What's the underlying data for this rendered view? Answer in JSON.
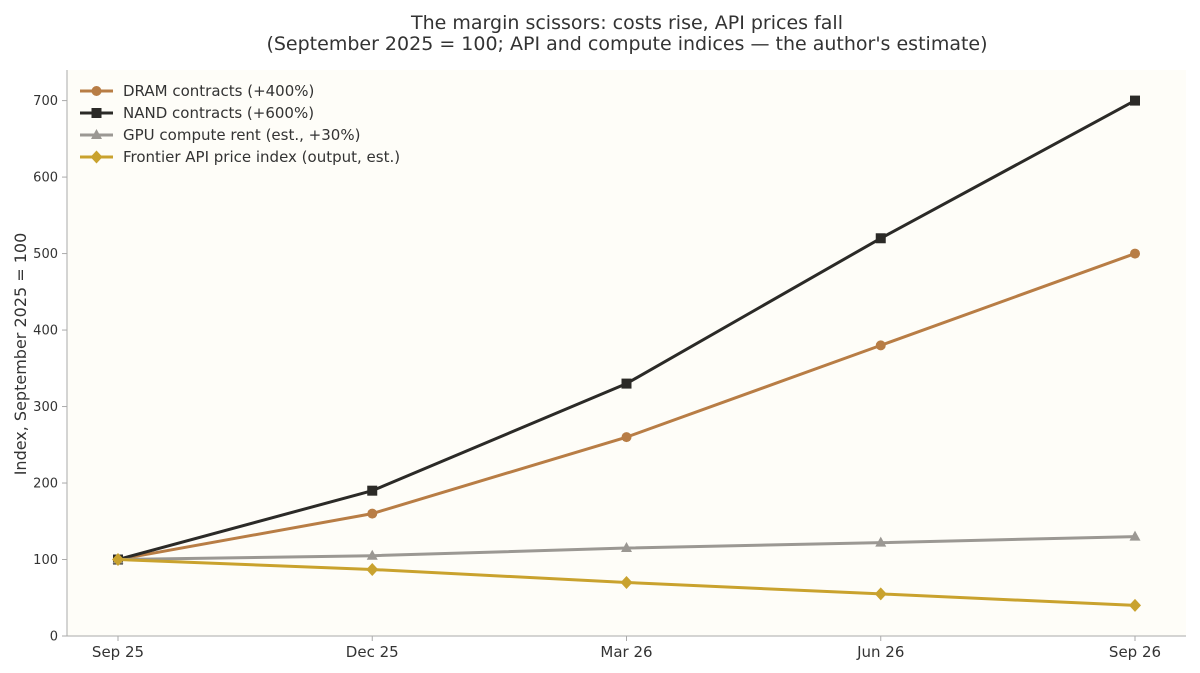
{
  "chart_data": {
    "type": "line",
    "title": "The margin scissors: costs rise, API prices fall",
    "subtitle": "(September 2025 = 100; API and compute indices — the author's estimate)",
    "xlabel": "",
    "ylabel": "Index, September 2025 = 100",
    "categories": [
      "Sep 25",
      "Dec 25",
      "Mar 26",
      "Jun 26",
      "Sep 26"
    ],
    "ylim": [
      0,
      740
    ],
    "yticks": [
      0,
      100,
      200,
      300,
      400,
      500,
      600,
      700
    ],
    "grid": false,
    "legend_position": "top-left",
    "plot_background": "#fefdf8",
    "series": [
      {
        "name": "DRAM contracts (+400%)",
        "values": [
          100,
          160,
          260,
          380,
          500
        ],
        "color": "#b87d45",
        "marker": "circle"
      },
      {
        "name": "NAND contracts (+600%)",
        "values": [
          100,
          190,
          330,
          520,
          700
        ],
        "color": "#2b2a27",
        "marker": "square"
      },
      {
        "name": "GPU compute rent (est., +30%)",
        "values": [
          100,
          105,
          115,
          122,
          130
        ],
        "color": "#9b9893",
        "marker": "triangle"
      },
      {
        "name": "Frontier API price index (output, est.)",
        "values": [
          100,
          87,
          70,
          55,
          40
        ],
        "color": "#c9a22e",
        "marker": "diamond"
      }
    ]
  }
}
